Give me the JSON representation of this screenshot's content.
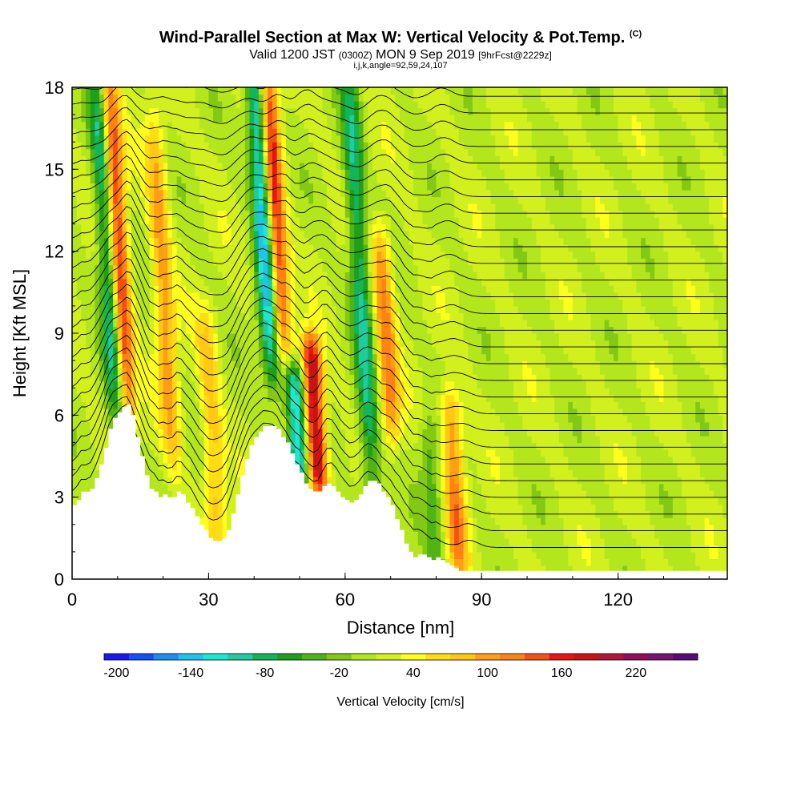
{
  "header": {
    "title": "Wind-Parallel Section at Max W: Vertical Velocity & Pot.Temp.",
    "title_mark": "(C)",
    "subtitle_a": "Valid 1200 JST",
    "subtitle_b": "(0300Z)",
    "subtitle_c": "MON 9 Sep 2019",
    "subtitle_d": "[9hrFcst@2229z]",
    "subtitle2": "i,j,k,angle=92,59,24,107"
  },
  "colorbar": {
    "label": "Vertical Velocity [cm/s]",
    "tick_labels": [
      "-200",
      "-140",
      "-80",
      "-20",
      "40",
      "100",
      "160",
      "220"
    ],
    "colors": [
      "#1a1af0",
      "#1450f5",
      "#1e8cf5",
      "#1ec3f0",
      "#1ee6d2",
      "#1ecca0",
      "#14b45a",
      "#1ea01e",
      "#50b414",
      "#82c814",
      "#b4e61e",
      "#d2f01e",
      "#ffff1e",
      "#ffdc14",
      "#ffc814",
      "#ffa014",
      "#ff8214",
      "#f55014",
      "#e61414",
      "#c81414",
      "#b4143c",
      "#960a5a",
      "#78146e",
      "#5a0a78"
    ]
  },
  "chart_data": {
    "type": "heatmap",
    "xlabel": "Distance [nm]",
    "ylabel": "Height [Kft MSL]",
    "xlim": [
      0,
      144
    ],
    "ylim": [
      0,
      18
    ],
    "x_ticks": [
      0,
      30,
      60,
      90,
      120
    ],
    "y_ticks": [
      0,
      3,
      6,
      9,
      12,
      15,
      18
    ],
    "variable": "Vertical Velocity [cm/s]",
    "terrain": {
      "x": [
        0,
        1,
        2,
        3,
        4,
        5,
        6,
        7,
        8,
        9,
        10,
        11,
        12,
        13,
        14,
        15,
        16,
        17,
        18,
        19,
        20,
        21,
        22,
        23,
        24,
        25,
        26,
        27,
        28,
        29,
        30,
        31,
        32,
        33,
        34,
        35,
        36,
        37,
        38,
        39,
        40,
        41,
        42,
        43,
        44,
        45,
        46,
        47,
        48,
        49,
        50,
        51,
        52,
        53,
        54,
        55,
        56,
        57,
        58,
        59,
        60,
        61,
        62,
        63,
        64,
        65,
        66,
        67,
        68,
        69,
        70,
        71,
        72,
        73,
        74,
        75,
        76,
        77,
        78,
        79,
        80,
        81,
        82,
        83,
        84,
        85,
        86,
        87,
        88,
        89,
        90,
        144
      ],
      "height_kft": [
        2.7,
        2.9,
        3.2,
        3.2,
        3.3,
        3.7,
        4.2,
        4.8,
        5.5,
        5.9,
        6.1,
        6.3,
        6.4,
        6.0,
        5.2,
        4.5,
        3.8,
        3.3,
        3.2,
        3.0,
        3.1,
        3.0,
        3.0,
        3.2,
        3.1,
        2.8,
        2.6,
        2.3,
        2.0,
        1.8,
        1.5,
        1.4,
        1.4,
        1.5,
        1.8,
        2.4,
        3.1,
        3.8,
        4.4,
        4.9,
        5.2,
        5.4,
        5.6,
        5.6,
        5.6,
        5.5,
        5.2,
        5.0,
        4.6,
        4.2,
        3.9,
        3.5,
        3.3,
        3.2,
        3.2,
        3.4,
        3.5,
        3.4,
        3.2,
        3.0,
        2.9,
        2.8,
        2.9,
        3.1,
        3.4,
        3.6,
        3.6,
        3.5,
        3.2,
        3.0,
        2.7,
        2.2,
        1.8,
        1.3,
        1.0,
        0.8,
        0.9,
        0.9,
        0.8,
        0.7,
        0.8,
        0.7,
        0.6,
        0.5,
        0.4,
        0.3,
        0.3,
        0.3,
        0.3,
        0.3,
        0.3,
        0.3
      ]
    },
    "wave_features": [
      {
        "kind": "updraft",
        "x_at_base": 12,
        "height_range": [
          6.3,
          18
        ],
        "peak_cm_s": 180
      },
      {
        "kind": "downdraft",
        "x_at_base": 10,
        "height_range": [
          6.3,
          18
        ],
        "peak_cm_s": -140
      },
      {
        "kind": "updraft",
        "x_at_base": 22,
        "height_range": [
          5,
          16
        ],
        "peak_cm_s": 90
      },
      {
        "kind": "updraft",
        "x_at_base": 32,
        "height_range": [
          2,
          9
        ],
        "peak_cm_s": 70
      },
      {
        "kind": "updraft",
        "x_at_base": 46,
        "height_range": [
          9,
          18
        ],
        "peak_cm_s": 180
      },
      {
        "kind": "downdraft",
        "x_at_base": 44,
        "height_range": [
          8,
          18
        ],
        "peak_cm_s": -180
      },
      {
        "kind": "updraft",
        "x_at_base": 54,
        "height_range": [
          4,
          8
        ],
        "peak_cm_s": 200
      },
      {
        "kind": "downdraft",
        "x_at_base": 50,
        "height_range": [
          4,
          7
        ],
        "peak_cm_s": -150
      },
      {
        "kind": "downdraft",
        "x_at_base": 66,
        "height_range": [
          3.5,
          18
        ],
        "peak_cm_s": -100
      },
      {
        "kind": "updraft",
        "x_at_base": 70,
        "height_range": [
          6,
          12
        ],
        "peak_cm_s": 110
      },
      {
        "kind": "updraft",
        "x_at_base": 85,
        "height_range": [
          1,
          6
        ],
        "peak_cm_s": 110
      },
      {
        "kind": "downdraft",
        "x_at_base": 80,
        "height_range": [
          0.5,
          5
        ],
        "peak_cm_s": -50
      }
    ],
    "theta_contours": "potential temperature isentropes, 3 C interval"
  }
}
